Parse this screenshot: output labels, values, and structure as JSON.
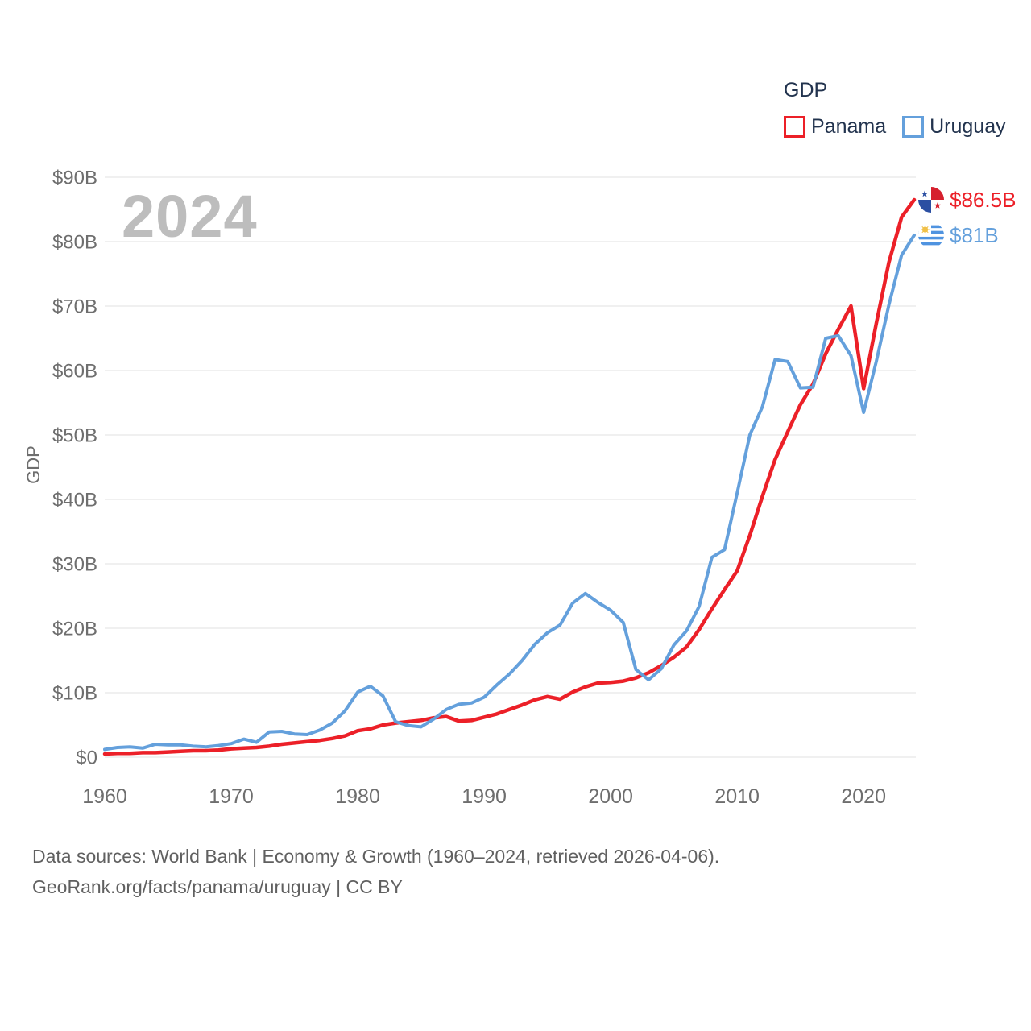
{
  "watermark": "2024",
  "legend": {
    "title": "GDP",
    "items": [
      {
        "label": "Panama",
        "color": "#ec2028"
      },
      {
        "label": "Uruguay",
        "color": "#64a0dc"
      }
    ]
  },
  "icons": {
    "panama_flag": "panama-flag-icon",
    "uruguay_flag": "uruguay-flag-icon"
  },
  "footer": {
    "line1": "Data sources: World Bank | Economy & Growth (1960–2024, retrieved 2026-04-06).",
    "line2": "GeoRank.org/facts/panama/uruguay | CC BY"
  },
  "chart_data": {
    "type": "line",
    "title": "GDP",
    "xlabel": "",
    "ylabel": "GDP",
    "xlim": [
      1960,
      2024
    ],
    "ylim": [
      0,
      90
    ],
    "grid": "horizontal",
    "legend_position": "top-right",
    "x_ticks": [
      "1960",
      "1970",
      "1980",
      "1990",
      "2000",
      "2010",
      "2020"
    ],
    "x_tick_values": [
      1960,
      1970,
      1980,
      1990,
      2000,
      2010,
      2020
    ],
    "y_ticks": [
      {
        "value": 0,
        "label": "$0"
      },
      {
        "value": 10,
        "label": "$10B"
      },
      {
        "value": 20,
        "label": "$20B"
      },
      {
        "value": 30,
        "label": "$30B"
      },
      {
        "value": 40,
        "label": "$40B"
      },
      {
        "value": 50,
        "label": "$50B"
      },
      {
        "value": 60,
        "label": "$60B"
      },
      {
        "value": 70,
        "label": "$70B"
      },
      {
        "value": 80,
        "label": "$80B"
      },
      {
        "value": 90,
        "label": "$90B"
      }
    ],
    "x": [
      1960,
      1961,
      1962,
      1963,
      1964,
      1965,
      1966,
      1967,
      1968,
      1969,
      1970,
      1971,
      1972,
      1973,
      1974,
      1975,
      1976,
      1977,
      1978,
      1979,
      1980,
      1981,
      1982,
      1983,
      1984,
      1985,
      1986,
      1987,
      1988,
      1989,
      1990,
      1991,
      1992,
      1993,
      1994,
      1995,
      1996,
      1997,
      1998,
      1999,
      2000,
      2001,
      2002,
      2003,
      2004,
      2005,
      2006,
      2007,
      2008,
      2009,
      2010,
      2011,
      2012,
      2013,
      2014,
      2015,
      2016,
      2017,
      2018,
      2019,
      2020,
      2021,
      2022,
      2023,
      2024
    ],
    "series": [
      {
        "name": "Panama",
        "color": "#ec2028",
        "end_label": "$86.5B",
        "end_value_billion": 86.5,
        "values": [
          0.5,
          0.6,
          0.6,
          0.7,
          0.7,
          0.8,
          0.9,
          1.0,
          1.0,
          1.1,
          1.3,
          1.4,
          1.5,
          1.7,
          2.0,
          2.2,
          2.4,
          2.6,
          2.9,
          3.3,
          4.1,
          4.4,
          5.0,
          5.3,
          5.5,
          5.7,
          6.1,
          6.3,
          5.6,
          5.7,
          6.2,
          6.7,
          7.4,
          8.1,
          8.9,
          9.4,
          9.0,
          10.1,
          10.9,
          11.5,
          11.6,
          11.8,
          12.3,
          13.1,
          14.2,
          15.5,
          17.1,
          19.8,
          23.0,
          26.0,
          28.9,
          34.4,
          40.5,
          46.2,
          50.5,
          54.7,
          57.9,
          62.6,
          66.4,
          70.0,
          57.2,
          67.3,
          76.8,
          83.8,
          86.5
        ]
      },
      {
        "name": "Uruguay",
        "color": "#64a0dc",
        "end_label": "$81B",
        "end_value_billion": 81,
        "values": [
          1.2,
          1.5,
          1.6,
          1.4,
          2.0,
          1.9,
          1.9,
          1.7,
          1.6,
          1.8,
          2.1,
          2.8,
          2.3,
          3.9,
          4.0,
          3.6,
          3.5,
          4.2,
          5.3,
          7.2,
          10.1,
          11.0,
          9.5,
          5.5,
          4.9,
          4.7,
          5.9,
          7.4,
          8.2,
          8.4,
          9.3,
          11.2,
          12.9,
          15.0,
          17.5,
          19.3,
          20.5,
          23.9,
          25.4,
          24.0,
          22.8,
          20.9,
          13.6,
          12.0,
          13.7,
          17.4,
          19.6,
          23.4,
          31.0,
          32.2,
          41.0,
          50.0,
          54.4,
          61.7,
          61.4,
          57.3,
          57.4,
          65.0,
          65.4,
          62.3,
          53.5,
          61.4,
          70.2,
          77.9,
          81.0
        ]
      }
    ]
  }
}
